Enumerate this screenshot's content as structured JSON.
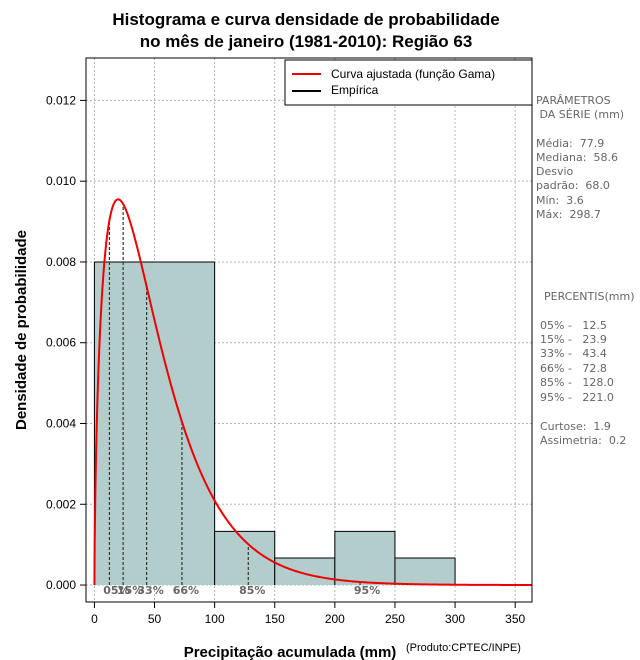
{
  "chart_data": {
    "type": "histogram",
    "title_line1": "Histograma e curva densidade de probabilidade",
    "title_line2": "no mês de janeiro (1981-2010): Região 63",
    "xlabel": "Precipitação acumulada (mm)",
    "ylabel": "Densidade de probabilidade",
    "credit": "(Produto:CPTEC/INPE)",
    "xlim": [
      -7,
      364
    ],
    "ylim": [
      -0.00042,
      0.01305
    ],
    "x_ticks": [
      0,
      50,
      100,
      150,
      200,
      250,
      300,
      350
    ],
    "x_tick_labels": [
      "0",
      "50",
      "100",
      "150",
      "200",
      "250",
      "300",
      "350"
    ],
    "y_ticks": [
      0.0,
      0.002,
      0.004,
      0.006,
      0.008,
      0.01,
      0.012
    ],
    "y_tick_labels": [
      "0.000",
      "0.002",
      "0.004",
      "0.006",
      "0.008",
      "0.010",
      "0.012"
    ],
    "grid": true,
    "bins": [
      {
        "from": 0,
        "to": 100,
        "density": 0.008
      },
      {
        "from": 100,
        "to": 150,
        "density": 0.00133
      },
      {
        "from": 150,
        "to": 200,
        "density": 0.00067
      },
      {
        "from": 200,
        "to": 250,
        "density": 0.00133
      },
      {
        "from": 250,
        "to": 300,
        "density": 0.00067
      }
    ],
    "bar_color": "#b3cccc",
    "curve_color": "#ee0000",
    "gamma_curve": {
      "shape": 1.62,
      "scale": 31.8,
      "peak_density": 0.00955,
      "peak_x": 20
    },
    "legend": {
      "position": "top-right",
      "entries": [
        {
          "label": "Curva ajustada (função Gama)",
          "color": "#ee0000"
        },
        {
          "label": "Empírica",
          "color": "#000000"
        }
      ]
    },
    "percentiles": [
      {
        "label": "05%",
        "value": 12.5
      },
      {
        "label": "15%",
        "value": 23.9
      },
      {
        "label": "33%",
        "value": 43.4
      },
      {
        "label": "66%",
        "value": 72.8
      },
      {
        "label": "85%",
        "value": 128.0
      },
      {
        "label": "95%",
        "value": 221.0
      }
    ]
  },
  "side_panel": {
    "params_title_1": "PARÂMETROS",
    "params_title_2": " DA SÉRIE (mm)",
    "media": "Média:  77.9",
    "mediana": "Mediana:  58.6",
    "desvio_1": "Desvio",
    "desvio_2": "padrão:  68.0",
    "min": "Mín:  3.6",
    "max": "Máx:  298.7",
    "percentis_title": "PERCENTIS(mm)",
    "p05": "05% -   12.5",
    "p15": "15% -   23.9",
    "p33": "33% -   43.4",
    "p66": "66% -   72.8",
    "p85": "85% -   128.0",
    "p95": "95% -   221.0",
    "curtose": "Curtose:  1.9",
    "assimetria": "Assimetria:  0.2"
  }
}
